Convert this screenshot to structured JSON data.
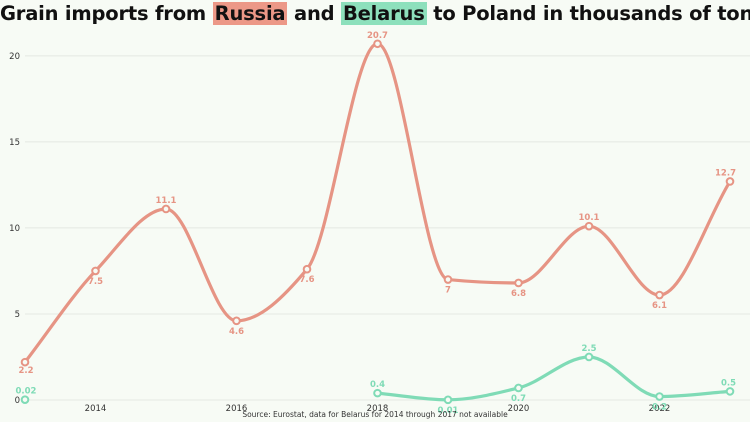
{
  "title": {
    "part1": "Grain imports from ",
    "russia": "Russia",
    "part2": " and ",
    "belarus": "Belarus",
    "part3": " to Poland in thousands of tons"
  },
  "source": "Source: Eurostat, data for Belarus for 2014 through 2017 not available",
  "colors": {
    "russia": "#e69484",
    "russia_highlight": "#ec9887",
    "belarus": "#7fdbb6",
    "belarus_highlight": "#8de0bc",
    "grid": "#e4e8e2"
  },
  "chart_data": {
    "type": "line",
    "title": "Grain imports from Russia and Belarus to Poland in thousands of tons",
    "xlabel": "",
    "ylabel": "",
    "xlim": [
      2013,
      2023
    ],
    "ylim": [
      0,
      21.5
    ],
    "x_ticks": [
      2014,
      2016,
      2018,
      2020,
      2022
    ],
    "y_ticks": [
      0,
      5,
      10,
      15,
      20
    ],
    "grid": true,
    "series": [
      {
        "name": "Russia",
        "color": "#e69484",
        "x": [
          2013,
          2014,
          2015,
          2016,
          2017,
          2018,
          2019,
          2020,
          2021,
          2022,
          2023
        ],
        "values": [
          2.2,
          7.5,
          11.1,
          4.6,
          7.6,
          20.7,
          7,
          6.8,
          10.1,
          6.1,
          12.7
        ],
        "labels": [
          "2.2",
          "7.5",
          "11.1",
          "4.6",
          "7.6",
          "20.7",
          "7",
          "6.8",
          "10.1",
          "6.1",
          "12.7"
        ]
      },
      {
        "name": "Belarus",
        "color": "#7fdbb6",
        "x": [
          2013,
          2018,
          2019,
          2020,
          2021,
          2022,
          2023
        ],
        "values": [
          0.02,
          0.4,
          0.01,
          0.7,
          2.5,
          0.2,
          0.5
        ],
        "labels": [
          "0.02",
          "0.4",
          "0.01",
          "0.7",
          "2.5",
          "0.2",
          "0.5"
        ]
      }
    ]
  }
}
